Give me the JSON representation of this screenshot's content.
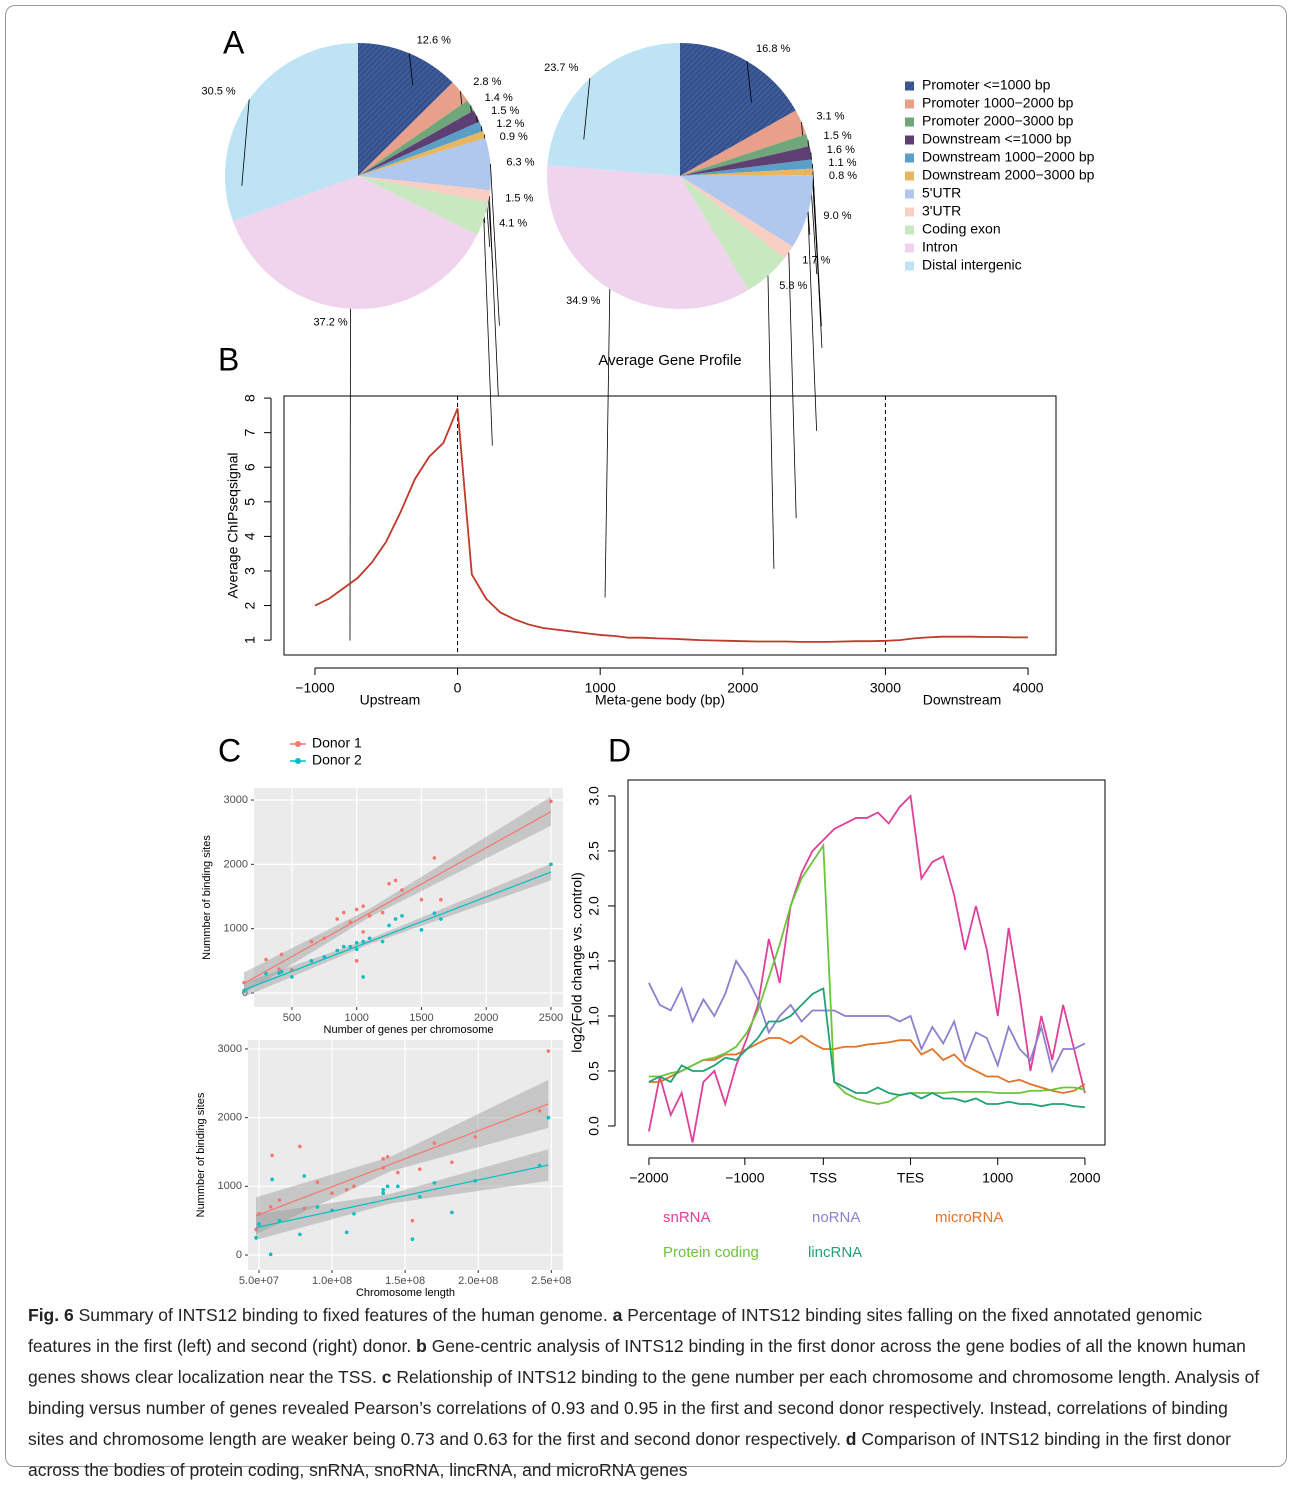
{
  "panel_labels": [
    "A",
    "B",
    "C",
    "D"
  ],
  "chart_data": [
    {
      "type": "pie",
      "categories": [
        "Promoter <=1000 bp",
        "Promoter 1000−2000 bp",
        "Promoter 2000−3000 bp",
        "Downstream <=1000 bp",
        "Downstream 1000−2000 bp",
        "Downstream 2000−3000 bp",
        "5'UTR",
        "3'UTR",
        "Coding exon",
        "Intron",
        "Distal intergenic"
      ],
      "colors": [
        "#3d5a99",
        "#e8a08a",
        "#6fa67a",
        "#5e3f73",
        "#5a9fc8",
        "#e8b560",
        "#b0c8ee",
        "#f9cfc3",
        "#c8e8bf",
        "#f0d4ee",
        "#bde3f4"
      ],
      "series": [
        {
          "values": [
            12.6,
            2.8,
            1.4,
            1.5,
            1.2,
            0.9,
            6.3,
            1.5,
            4.1,
            37.2,
            30.5
          ],
          "value_labels": [
            "12.6 %",
            "2.8 %",
            "1.4 %",
            "1.5 %",
            "1.2 %",
            "0.9 %",
            "6.3 %",
            "1.5 %",
            "4.1 %",
            "37.2 %",
            "30.5 %"
          ]
        },
        {
          "values": [
            16.8,
            3.1,
            1.5,
            1.6,
            1.1,
            0.8,
            9.0,
            1.7,
            5.8,
            34.9,
            23.7
          ],
          "value_labels": [
            "16.8 %",
            "3.1 %",
            "1.5 %",
            "1.6 %",
            "1.1 %",
            "0.8 %",
            "9.0 %",
            "1.7 %",
            "5.8 %",
            "34.9 %",
            "23.7 %"
          ]
        }
      ]
    },
    {
      "type": "line",
      "title": "Average Gene Profile",
      "ylabel": "Average ChIPseqsignal",
      "region_labels": [
        "Upstream",
        "Meta-gene body (bp)",
        "Downstream"
      ],
      "xlim": [
        -1217,
        4196
      ],
      "xticks": [
        {
          "value": -1000,
          "label": "−1000"
        },
        0,
        1000,
        2000,
        3000,
        4000
      ],
      "ylim": [
        0.57,
        8.06
      ],
      "yticks": [
        1,
        2,
        3,
        4,
        5,
        6,
        7,
        8
      ],
      "vlines": [
        0,
        3000
      ],
      "x": [
        -1000,
        -900,
        -800,
        -700,
        -600,
        -500,
        -400,
        -300,
        -200,
        -100,
        0,
        100,
        200,
        300,
        400,
        500,
        600,
        700,
        800,
        900,
        1000,
        1100,
        1200,
        1300,
        1400,
        1500,
        1600,
        1700,
        1800,
        1900,
        2000,
        2100,
        2200,
        2300,
        2400,
        2500,
        2600,
        2700,
        2800,
        2900,
        3000,
        3100,
        3200,
        3300,
        3400,
        3500,
        3600,
        3700,
        3800,
        3900,
        4000
      ],
      "series": [
        {
          "color": "#c0392b",
          "values": [
            2.0,
            2.2,
            2.5,
            2.8,
            3.25,
            3.85,
            4.7,
            5.65,
            6.3,
            6.7,
            7.7,
            2.9,
            2.2,
            1.8,
            1.6,
            1.45,
            1.35,
            1.3,
            1.25,
            1.2,
            1.15,
            1.12,
            1.07,
            1.07,
            1.05,
            1.04,
            1.02,
            1.0,
            0.99,
            0.98,
            0.97,
            0.96,
            0.96,
            0.96,
            0.95,
            0.95,
            0.95,
            0.96,
            0.97,
            0.97,
            0.98,
            1.0,
            1.05,
            1.08,
            1.1,
            1.1,
            1.1,
            1.09,
            1.09,
            1.08,
            1.08
          ]
        }
      ]
    },
    {
      "type": "scatter",
      "xlabel": "Number of genes per chromosome",
      "ylabel": "Nummber of binding sites",
      "xlim": [
        207,
        2593
      ],
      "xticks": [
        500,
        1000,
        1500,
        2000,
        2500
      ],
      "ylim": [
        -218,
        3187
      ],
      "yticks": [
        0,
        1000,
        2000,
        3000
      ],
      "series": [
        {
          "name": "Donor 1",
          "color": "#f8766d",
          "x": [
            130,
            300,
            420,
            500,
            650,
            750,
            850,
            900,
            950,
            1000,
            1050,
            1050,
            1100,
            1200,
            1250,
            1300,
            1350,
            1500,
            1600,
            1650,
            2500,
            1000,
            400
          ],
          "values": [
            160,
            520,
            600,
            360,
            800,
            850,
            1150,
            1250,
            1100,
            1300,
            950,
            1350,
            1200,
            1250,
            1700,
            1750,
            1600,
            1450,
            2100,
            1450,
            2980,
            500,
            370
          ],
          "fit": {
            "x": [
              130,
              1100,
              2500
            ],
            "values": [
              150,
              1243,
              2820
            ],
            "lower": [
              -10,
              1180,
              2600
            ],
            "upper": [
              320,
              1310,
              3050
            ]
          }
        },
        {
          "name": "Donor 2",
          "color": "#00bfc4",
          "x": [
            130,
            300,
            420,
            500,
            650,
            750,
            850,
            900,
            950,
            1000,
            1050,
            1050,
            1100,
            1200,
            1250,
            1300,
            1350,
            1500,
            1600,
            1650,
            2500,
            1000,
            400
          ],
          "values": [
            30,
            300,
            330,
            250,
            500,
            560,
            660,
            720,
            720,
            780,
            250,
            800,
            850,
            800,
            1050,
            1150,
            1200,
            980,
            1240,
            1150,
            2000,
            680,
            310
          ],
          "fit": {
            "x": [
              130,
              1100,
              2500
            ],
            "values": [
              50,
              799,
              1880
            ],
            "lower": [
              -60,
              760,
              1750
            ],
            "upper": [
              160,
              840,
              2010
            ]
          }
        }
      ]
    },
    {
      "type": "scatter",
      "xlabel": "Chromosome length",
      "ylabel": "Nummber of binding sites",
      "xlim": [
        42500000,
        258000000
      ],
      "xticks": [
        {
          "value": 50000000,
          "label": "5.0e+07"
        },
        {
          "value": 100000000,
          "label": "1.0e+08"
        },
        {
          "value": 150000000,
          "label": "1.5e+08"
        },
        {
          "value": 200000000,
          "label": "2.0e+08"
        },
        {
          "value": 250000000,
          "label": "2.5e+08"
        }
      ],
      "ylim": [
        -218,
        3130
      ],
      "yticks": [
        0,
        1000,
        2000,
        3000
      ],
      "series": [
        {
          "color": "#f8766d",
          "x": [
            48000000,
            50000000,
            59000000,
            64000000,
            78000000,
            81000000,
            90000000,
            100000000,
            110000000,
            135000000,
            135000000,
            138000000,
            145000000,
            155000000,
            160000000,
            170000000,
            182000000,
            198000000,
            242000000,
            248000000,
            58000000,
            115000000
          ],
          "values": [
            370,
            600,
            1450,
            800,
            1580,
            680,
            1060,
            900,
            950,
            1400,
            1270,
            1430,
            1200,
            500,
            1250,
            1630,
            1350,
            1720,
            2100,
            2970,
            700,
            1000
          ],
          "fit": {
            "x": [
              48000000,
              140000000,
              248000000
            ],
            "values": [
              570,
              1320,
              2200
            ],
            "lower": [
              300,
              1220,
              1850
            ],
            "upper": [
              840,
              1430,
              2550
            ]
          }
        },
        {
          "color": "#00bfc4",
          "x": [
            48000000,
            50000000,
            59000000,
            64000000,
            78000000,
            81000000,
            90000000,
            100000000,
            110000000,
            135000000,
            135000000,
            138000000,
            145000000,
            155000000,
            160000000,
            170000000,
            182000000,
            198000000,
            242000000,
            248000000,
            58000000,
            115000000
          ],
          "values": [
            250,
            450,
            1100,
            500,
            300,
            1150,
            700,
            650,
            330,
            950,
            900,
            1000,
            1000,
            230,
            850,
            1050,
            620,
            1080,
            1300,
            2000,
            10,
            600
          ],
          "fit": {
            "x": [
              48000000,
              140000000,
              248000000
            ],
            "values": [
              400,
              819,
              1310
            ],
            "lower": [
              220,
              750,
              1080
            ],
            "upper": [
              590,
              890,
              1540
            ]
          }
        }
      ]
    },
    {
      "type": "line",
      "ylabel": "log2(Fold change vs. control)",
      "xlim": [
        -4.8,
        104.6
      ],
      "xticks": [
        {
          "value": 0,
          "label": "−2000"
        },
        {
          "value": 22,
          "label": "−1000"
        },
        {
          "value": 40,
          "label": "TSS"
        },
        {
          "value": 60,
          "label": "TES"
        },
        {
          "value": 80,
          "label": "1000"
        },
        {
          "value": 100,
          "label": "2000"
        }
      ],
      "ylim": [
        -0.173,
        3.145
      ],
      "yticks": [
        {
          "value": 0,
          "label": "0.0"
        },
        0.5,
        {
          "value": 1,
          "label": "1.0"
        },
        1.5,
        {
          "value": 2,
          "label": "2.0"
        },
        2.5,
        {
          "value": 3,
          "label": "3.0"
        }
      ],
      "x": [
        0,
        2.5,
        5,
        7.5,
        10,
        12.5,
        15,
        17.5,
        20,
        22.5,
        25,
        27.5,
        30,
        32.5,
        35,
        37.5,
        40,
        42.5,
        45,
        47.5,
        50,
        52.5,
        55,
        57.5,
        60,
        62.5,
        65,
        67.5,
        70,
        72.5,
        75,
        77.5,
        80,
        82.5,
        85,
        87.5,
        90,
        92.5,
        95,
        97.5,
        100
      ],
      "series": [
        {
          "name": "snRNA",
          "color": "#e0409a",
          "values": [
            -0.05,
            0.45,
            0.1,
            0.3,
            -0.15,
            0.4,
            0.5,
            0.2,
            0.55,
            0.8,
            1.1,
            1.7,
            1.3,
            2.0,
            2.3,
            2.5,
            2.6,
            2.7,
            2.75,
            2.8,
            2.8,
            2.85,
            2.75,
            2.9,
            3.0,
            2.25,
            2.4,
            2.45,
            2.1,
            1.6,
            2.0,
            1.6,
            1.0,
            1.8,
            1.2,
            0.5,
            1.0,
            0.6,
            1.1,
            0.7,
            0.3
          ]
        },
        {
          "name": "noRNA",
          "color": "#8f7fd0",
          "values": [
            1.3,
            1.1,
            1.05,
            1.25,
            0.95,
            1.15,
            1.0,
            1.2,
            1.5,
            1.35,
            1.15,
            0.85,
            1.0,
            1.1,
            0.95,
            1.05,
            1.05,
            1.05,
            1.0,
            1.0,
            1.0,
            1.0,
            1.0,
            0.95,
            1.0,
            0.7,
            0.9,
            0.75,
            0.95,
            0.6,
            0.85,
            0.8,
            0.55,
            0.9,
            0.7,
            0.6,
            0.9,
            0.5,
            0.7,
            0.7,
            0.75
          ]
        },
        {
          "name": "microRNA",
          "color": "#e07428",
          "values": [
            0.4,
            0.4,
            0.45,
            0.5,
            0.55,
            0.6,
            0.6,
            0.65,
            0.65,
            0.7,
            0.75,
            0.8,
            0.8,
            0.75,
            0.82,
            0.75,
            0.7,
            0.7,
            0.72,
            0.72,
            0.74,
            0.75,
            0.76,
            0.78,
            0.78,
            0.65,
            0.7,
            0.6,
            0.65,
            0.55,
            0.5,
            0.45,
            0.45,
            0.4,
            0.42,
            0.38,
            0.35,
            0.32,
            0.3,
            0.32,
            0.38
          ]
        },
        {
          "name": "Protein coding",
          "color": "#6cc43a",
          "values": [
            0.45,
            0.45,
            0.48,
            0.5,
            0.55,
            0.6,
            0.62,
            0.66,
            0.72,
            0.85,
            1.05,
            1.35,
            1.65,
            2.0,
            2.25,
            2.4,
            2.55,
            0.4,
            0.3,
            0.25,
            0.22,
            0.2,
            0.22,
            0.28,
            0.3,
            0.3,
            0.3,
            0.3,
            0.31,
            0.31,
            0.31,
            0.31,
            0.3,
            0.3,
            0.3,
            0.32,
            0.32,
            0.33,
            0.35,
            0.35,
            0.33
          ]
        },
        {
          "name": "lincRNA",
          "color": "#22a07a",
          "values": [
            0.4,
            0.45,
            0.4,
            0.55,
            0.5,
            0.5,
            0.55,
            0.62,
            0.6,
            0.7,
            0.8,
            0.95,
            0.95,
            1.0,
            1.1,
            1.2,
            1.25,
            0.4,
            0.35,
            0.3,
            0.3,
            0.35,
            0.3,
            0.28,
            0.3,
            0.25,
            0.3,
            0.25,
            0.25,
            0.22,
            0.25,
            0.2,
            0.2,
            0.22,
            0.2,
            0.2,
            0.18,
            0.2,
            0.2,
            0.18,
            0.17
          ]
        }
      ]
    }
  ],
  "caption": [
    {
      "text": "Fig. 6",
      "bold": true
    },
    {
      "text": " Summary of INTS12 binding to fixed features of the human genome. ",
      "bold": false
    },
    {
      "text": "a",
      "bold": true
    },
    {
      "text": " Percentage of INTS12 binding sites falling on the fixed annotated genomic features in the first (left) and second (right) donor. ",
      "bold": false
    },
    {
      "text": "b",
      "bold": true
    },
    {
      "text": " Gene-centric analysis of INTS12 binding in the first donor across the gene bodies of all the known human genes shows clear localization near the TSS. ",
      "bold": false
    },
    {
      "text": "c",
      "bold": true
    },
    {
      "text": " Relationship of INTS12 binding to the gene number per each chromosome and chromosome length. Analysis of binding versus number of genes revealed Pearson’s correlations of 0.93 and 0.95 in the first and second donor respectively. Instead, correlations of binding sites and chromosome length are weaker being 0.73 and 0.63 for the first and second donor respectively. ",
      "bold": false
    },
    {
      "text": "d",
      "bold": true
    },
    {
      "text": " Comparison of INTS12 binding in the first donor across the bodies of protein coding, snRNA, snoRNA, lincRNA, and microRNA genes",
      "bold": false
    }
  ]
}
